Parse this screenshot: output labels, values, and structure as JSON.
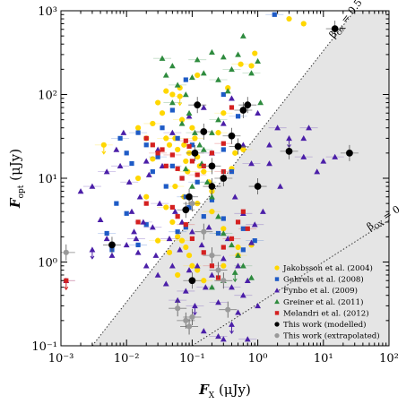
{
  "chart_data": {
    "type": "scatter",
    "x_scale": "log",
    "y_scale": "log",
    "xlim": [
      0.001,
      100
    ],
    "ylim": [
      0.1,
      1000
    ],
    "x_ticks": [
      {
        "value": 0.001,
        "label": "10⁻³"
      },
      {
        "value": 0.01,
        "label": "10⁻²"
      },
      {
        "value": 0.1,
        "label": "10⁻¹"
      },
      {
        "value": 1,
        "label": "10⁰"
      },
      {
        "value": 10,
        "label": "10¹"
      },
      {
        "value": 100,
        "label": "10²"
      }
    ],
    "y_ticks": [
      {
        "value": 0.1,
        "label": "10⁻¹"
      },
      {
        "value": 1,
        "label": "10⁰"
      },
      {
        "value": 10,
        "label": "10¹"
      },
      {
        "value": 100,
        "label": "10²"
      },
      {
        "value": 1000,
        "label": "10³"
      }
    ],
    "xlabel": "Fₓ (μJy)",
    "ylabel": "Fₒₚₜ (μJy)",
    "xlabel_parts": {
      "main": "F",
      "sub": "X",
      "unit": " (μJy)"
    },
    "ylabel_parts": {
      "main": "F",
      "sub": "opt",
      "unit": " (μJy)"
    },
    "grid": false,
    "legend_position": "bottom-right",
    "region": {
      "description": "shaded dark-burst region between beta_OX = 0.5 line and right/bottom axes",
      "color": "#e5e5e5"
    },
    "lines": [
      {
        "label": "βOX = 0.5",
        "label_greek": "β",
        "label_sub": "OX",
        "label_eq": " = 0.5",
        "slope": 1,
        "intercept_x": 0.003,
        "intercept_y": 0.1,
        "style": "dotted"
      },
      {
        "label": "βOX = 0",
        "label_greek": "β",
        "label_sub": "OX",
        "label_eq": " = 0",
        "slope": 0.5,
        "intercept_x": 0.1,
        "intercept_y": 0.1,
        "style": "dotted"
      }
    ],
    "series": [
      {
        "name": "Jakobsson et al. (2004)",
        "marker": "circle",
        "color": "#ffd700",
        "points": [
          [
            0.0045,
            25,
            "u"
          ],
          [
            0.015,
            40
          ],
          [
            0.02,
            30
          ],
          [
            0.025,
            45
          ],
          [
            0.03,
            80
          ],
          [
            0.035,
            60
          ],
          [
            0.04,
            30
          ],
          [
            0.045,
            25
          ],
          [
            0.05,
            100
          ],
          [
            0.055,
            30
          ],
          [
            0.06,
            22
          ],
          [
            0.065,
            120
          ],
          [
            0.07,
            50
          ],
          [
            0.075,
            25
          ],
          [
            0.08,
            16
          ],
          [
            0.085,
            12
          ],
          [
            0.09,
            20
          ],
          [
            0.1,
            40
          ],
          [
            0.11,
            30
          ],
          [
            0.12,
            18
          ],
          [
            0.13,
            14
          ],
          [
            0.15,
            12
          ],
          [
            0.18,
            9
          ],
          [
            0.2,
            7
          ],
          [
            0.04,
            4.5
          ],
          [
            0.05,
            3
          ],
          [
            0.06,
            2
          ],
          [
            0.07,
            1.8
          ],
          [
            0.08,
            1.5
          ],
          [
            0.09,
            1.2
          ],
          [
            0.1,
            0.9
          ],
          [
            0.12,
            0.8
          ],
          [
            0.3,
            0.9
          ],
          [
            0.5,
            1.2
          ],
          [
            0.8,
            1.6
          ],
          [
            0.5,
            1.5
          ],
          [
            0.6,
            22
          ],
          [
            0.45,
            20
          ],
          [
            0.04,
            110
          ],
          [
            0.065,
            95,
            "u"
          ],
          [
            0.8,
            220
          ],
          [
            0.9,
            310
          ],
          [
            0.55,
            230
          ],
          [
            3,
            800
          ],
          [
            5,
            700
          ],
          [
            0.3,
            60
          ],
          [
            0.025,
            17
          ],
          [
            0.015,
            10
          ],
          [
            0.055,
            8
          ],
          [
            0.075,
            6
          ],
          [
            0.12,
            5
          ],
          [
            0.2,
            4
          ],
          [
            0.3,
            2.5
          ],
          [
            0.06,
            0.7
          ],
          [
            0.15,
            0.6
          ],
          [
            0.12,
            170
          ],
          [
            0.35,
            120
          ],
          [
            0.25,
            35
          ],
          [
            0.4,
            13
          ],
          [
            0.02,
            6
          ],
          [
            0.03,
            1.8
          ],
          [
            0.045,
            1.3
          ]
        ]
      },
      {
        "name": "Gehrels et al. (2008)",
        "marker": "square",
        "color": "#1e5bc6",
        "points": [
          [
            0.008,
            30
          ],
          [
            0.01,
            20
          ],
          [
            0.012,
            15
          ],
          [
            0.015,
            35
          ],
          [
            0.02,
            25
          ],
          [
            0.025,
            12
          ],
          [
            0.03,
            18
          ],
          [
            0.035,
            40
          ],
          [
            0.04,
            8
          ],
          [
            0.05,
            14
          ],
          [
            0.06,
            30
          ],
          [
            0.07,
            10
          ],
          [
            0.08,
            6
          ],
          [
            0.09,
            4.5
          ],
          [
            0.1,
            25
          ],
          [
            0.12,
            9
          ],
          [
            0.15,
            3.5
          ],
          [
            0.2,
            5.5
          ],
          [
            0.25,
            2.2
          ],
          [
            0.3,
            3.3
          ],
          [
            0.01,
            3.8
          ],
          [
            0.015,
            1.6
          ],
          [
            0.02,
            2.8
          ],
          [
            0.006,
            1.4
          ],
          [
            0.005,
            2.2
          ],
          [
            0.007,
            5
          ],
          [
            0.6,
            2.5
          ],
          [
            0.9,
            1.8
          ],
          [
            0.6,
            1.4
          ],
          [
            0.3,
            100
          ],
          [
            0.5,
            55
          ],
          [
            0.3,
            22
          ],
          [
            0.4,
            12
          ],
          [
            1.8,
            900
          ],
          [
            0.08,
            150
          ],
          [
            0.05,
            65
          ],
          [
            0.06,
            2.3
          ],
          [
            0.08,
            2.6
          ]
        ]
      },
      {
        "name": "Fynbo et al. (2009)",
        "marker": "triangle-up",
        "color": "#4b1fa8",
        "points": [
          [
            0.0012,
            0.6
          ],
          [
            0.002,
            7
          ],
          [
            0.003,
            1.4,
            "u"
          ],
          [
            0.003,
            8
          ],
          [
            0.004,
            3.2
          ],
          [
            0.005,
            1.9
          ],
          [
            0.005,
            12
          ],
          [
            0.006,
            1.2
          ],
          [
            0.007,
            22
          ],
          [
            0.008,
            14
          ],
          [
            0.009,
            35
          ],
          [
            0.01,
            1.6
          ],
          [
            0.011,
            9
          ],
          [
            0.012,
            4
          ],
          [
            0.013,
            2.3
          ],
          [
            0.014,
            1.9
          ],
          [
            0.015,
            1.3
          ],
          [
            0.016,
            6
          ],
          [
            0.018,
            3
          ],
          [
            0.02,
            0.9
          ],
          [
            0.022,
            11
          ],
          [
            0.025,
            2.6
          ],
          [
            0.028,
            1.2
          ],
          [
            0.03,
            0.7
          ],
          [
            0.032,
            5
          ],
          [
            0.035,
            14
          ],
          [
            0.04,
            0.55
          ],
          [
            0.045,
            1.9
          ],
          [
            0.05,
            0.9
          ],
          [
            0.055,
            4
          ],
          [
            0.06,
            0.35
          ],
          [
            0.065,
            1.4
          ],
          [
            0.07,
            3
          ],
          [
            0.08,
            0.45
          ],
          [
            0.09,
            0.8
          ],
          [
            0.1,
            2.3
          ],
          [
            0.11,
            0.3,
            "u"
          ],
          [
            0.12,
            0.9
          ],
          [
            0.14,
            1.6
          ],
          [
            0.16,
            0.5
          ],
          [
            0.18,
            2.6
          ],
          [
            0.2,
            0.7
          ],
          [
            0.25,
            0.33
          ],
          [
            0.3,
            1.1
          ],
          [
            0.35,
            1.9
          ],
          [
            0.4,
            0.5
          ],
          [
            0.45,
            6
          ],
          [
            0.5,
            0.9
          ],
          [
            0.6,
            3.8
          ],
          [
            0.7,
            0.6
          ],
          [
            0.8,
            1.7
          ],
          [
            0.9,
            2.8
          ],
          [
            1.2,
            4
          ],
          [
            1.5,
            25
          ],
          [
            2,
            40
          ],
          [
            3,
            30,
            "u"
          ],
          [
            5,
            30
          ],
          [
            6,
            40
          ],
          [
            1.5,
            15
          ],
          [
            2.2,
            8
          ],
          [
            5,
            18
          ],
          [
            8,
            12
          ],
          [
            10,
            16
          ],
          [
            15,
            18
          ],
          [
            1,
            60
          ],
          [
            0.6,
            25
          ],
          [
            0.8,
            15
          ],
          [
            0.4,
            90
          ],
          [
            0.3,
            45
          ],
          [
            0.2,
            20
          ],
          [
            0.15,
            70
          ],
          [
            0.09,
            55
          ],
          [
            0.05,
            35
          ],
          [
            0.03,
            22
          ],
          [
            0.02,
            16
          ],
          [
            0.6,
            0.4
          ],
          [
            0.5,
            0.25
          ],
          [
            0.4,
            0.18,
            "u"
          ],
          [
            0.25,
            0.13
          ],
          [
            0.15,
            0.15
          ],
          [
            0.3,
            0.12
          ],
          [
            0.7,
            0.12
          ],
          [
            1,
            0.3
          ]
        ]
      },
      {
        "name": "Greiner et al. (2011)",
        "marker": "triangle-up",
        "color": "#2e8b3e",
        "points": [
          [
            0.035,
            270
          ],
          [
            0.04,
            170
          ],
          [
            0.05,
            220
          ],
          [
            0.06,
            130
          ],
          [
            0.08,
            100
          ],
          [
            0.1,
            160
          ],
          [
            0.12,
            260
          ],
          [
            0.15,
            180
          ],
          [
            0.2,
            320
          ],
          [
            0.25,
            150
          ],
          [
            0.3,
            280
          ],
          [
            0.35,
            110
          ],
          [
            0.4,
            200
          ],
          [
            0.5,
            300
          ],
          [
            0.6,
            500
          ],
          [
            0.8,
            180
          ],
          [
            1,
            250
          ],
          [
            0.09,
            60
          ],
          [
            0.11,
            35
          ],
          [
            0.13,
            25
          ],
          [
            0.14,
            15
          ],
          [
            0.17,
            9
          ],
          [
            0.2,
            6
          ],
          [
            0.25,
            3.5
          ],
          [
            0.3,
            2.2
          ],
          [
            0.4,
            1.6
          ],
          [
            0.5,
            1.2
          ],
          [
            0.6,
            0.9
          ],
          [
            0.8,
            0.65
          ],
          [
            0.07,
            45
          ],
          [
            0.05,
            80
          ],
          [
            0.45,
            0.75,
            "u"
          ],
          [
            0.2,
            0.5
          ],
          [
            0.3,
            0.6
          ],
          [
            1.1,
            80
          ],
          [
            0.2,
            35
          ],
          [
            0.15,
            22
          ],
          [
            0.08,
            13
          ],
          [
            0.1,
            8
          ],
          [
            0.25,
            50
          ]
        ]
      },
      {
        "name": "Melandri et al. (2012)",
        "marker": "square",
        "color": "#d42020",
        "points": [
          [
            0.0012,
            0.6,
            "u"
          ],
          [
            0.02,
            30
          ],
          [
            0.025,
            25
          ],
          [
            0.03,
            20
          ],
          [
            0.035,
            22
          ],
          [
            0.04,
            14
          ],
          [
            0.05,
            19
          ],
          [
            0.06,
            13
          ],
          [
            0.07,
            10
          ],
          [
            0.08,
            28
          ],
          [
            0.09,
            24
          ],
          [
            0.1,
            16
          ],
          [
            0.12,
            11
          ],
          [
            0.15,
            14
          ],
          [
            0.2,
            20
          ],
          [
            0.3,
            26
          ],
          [
            0.05,
            4.5
          ],
          [
            0.06,
            3.5
          ],
          [
            0.08,
            2.8
          ],
          [
            0.1,
            1.9
          ],
          [
            0.15,
            1.3
          ],
          [
            0.2,
            0.9
          ],
          [
            0.25,
            0.65
          ],
          [
            0.3,
            1.5
          ],
          [
            0.4,
            1.9
          ],
          [
            0.5,
            3
          ],
          [
            0.6,
            4
          ],
          [
            0.7,
            2.5
          ],
          [
            0.02,
            5
          ],
          [
            0.015,
            3
          ],
          [
            0.3,
            12
          ],
          [
            0.4,
            70
          ]
        ]
      },
      {
        "name": "This work (modelled)",
        "marker": "circle",
        "color": "#000000",
        "points": [
          [
            0.006,
            1.6
          ],
          [
            0.08,
            4.2
          ],
          [
            0.09,
            6
          ],
          [
            0.1,
            0.6
          ],
          [
            0.11,
            20
          ],
          [
            0.12,
            75
          ],
          [
            0.15,
            36
          ],
          [
            0.2,
            14
          ],
          [
            0.3,
            10
          ],
          [
            0.4,
            32
          ],
          [
            0.5,
            24
          ],
          [
            0.6,
            65
          ],
          [
            0.7,
            75
          ],
          [
            1,
            8
          ],
          [
            3,
            21
          ],
          [
            15,
            610
          ],
          [
            25,
            20
          ],
          [
            0.2,
            8
          ]
        ]
      },
      {
        "name": "This work (extrapolated)",
        "marker": "circle",
        "color": "#999999",
        "points": [
          [
            0.0012,
            1.3
          ],
          [
            0.06,
            0.28
          ],
          [
            0.08,
            0.2
          ],
          [
            0.09,
            0.17
          ],
          [
            0.1,
            0.22
          ],
          [
            0.15,
            2.3
          ],
          [
            0.2,
            1.2
          ],
          [
            0.25,
            0.8
          ],
          [
            0.3,
            0.6
          ],
          [
            0.35,
            0.27
          ],
          [
            0.1,
            5
          ]
        ]
      }
    ]
  }
}
